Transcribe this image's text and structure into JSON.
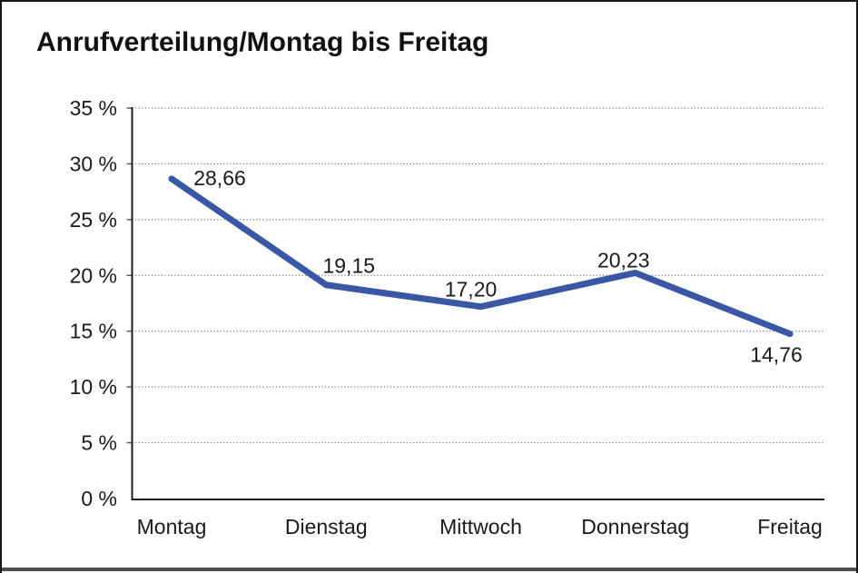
{
  "chart_data": {
    "type": "line",
    "title": "Anrufverteilung/Montag bis Freitag",
    "categories": [
      "Montag",
      "Dienstag",
      "Mittwoch",
      "Donnerstag",
      "Freitag"
    ],
    "values": [
      28.66,
      19.15,
      17.2,
      20.23,
      14.76
    ],
    "point_labels": [
      "28,66",
      "19,15",
      "17,20",
      "20,23",
      "14,76"
    ],
    "series": [
      {
        "name": "Anrufverteilung",
        "values": [
          28.66,
          19.15,
          17.2,
          20.23,
          14.76
        ]
      }
    ],
    "y_ticks": [
      0,
      5,
      10,
      15,
      20,
      25,
      30,
      35
    ],
    "y_tick_labels": [
      "0 %",
      "5 %",
      "10 %",
      "15 %",
      "20 %",
      "25 %",
      "30 %",
      "35 %"
    ],
    "ylim": [
      0,
      35
    ],
    "xlabel": "",
    "ylabel": "",
    "grid": "horizontal-dotted",
    "legend": "none",
    "colors": {
      "line": "#3a57a5",
      "axis": "#1c1c1c",
      "gridline": "#777777",
      "tick": "#555555",
      "text": "#1a1a1a",
      "frame_border": "#161616",
      "bottom_bar": "#4e4e4e",
      "background": "#ffffff"
    }
  }
}
